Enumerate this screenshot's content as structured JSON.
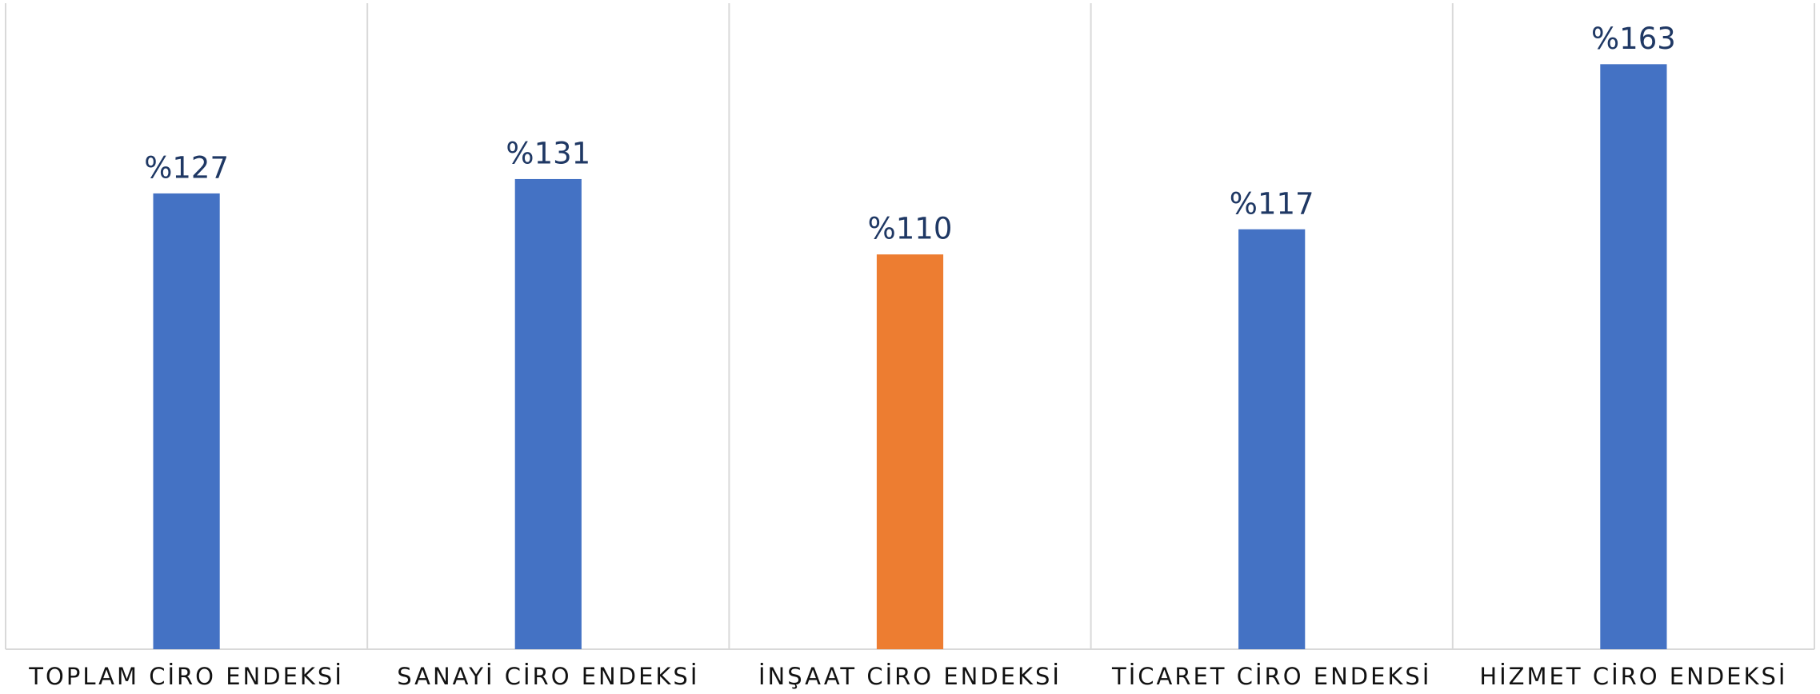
{
  "chart_data": {
    "type": "bar",
    "categories": [
      "TOPLAM CİRO ENDEKSİ",
      "SANAYİ CİRO ENDEKSİ",
      "İNŞAAT CİRO ENDEKSİ",
      "TİCARET CİRO ENDEKSİ",
      "HİZMET CİRO ENDEKSİ"
    ],
    "values": [
      127,
      131,
      110,
      117,
      163
    ],
    "value_labels": [
      "%127",
      "%131",
      "%110",
      "%117",
      "%163"
    ],
    "colors": [
      "#4472c4",
      "#4472c4",
      "#ed7d31",
      "#4472c4",
      "#4472c4"
    ],
    "ylim": [
      0,
      180
    ]
  }
}
